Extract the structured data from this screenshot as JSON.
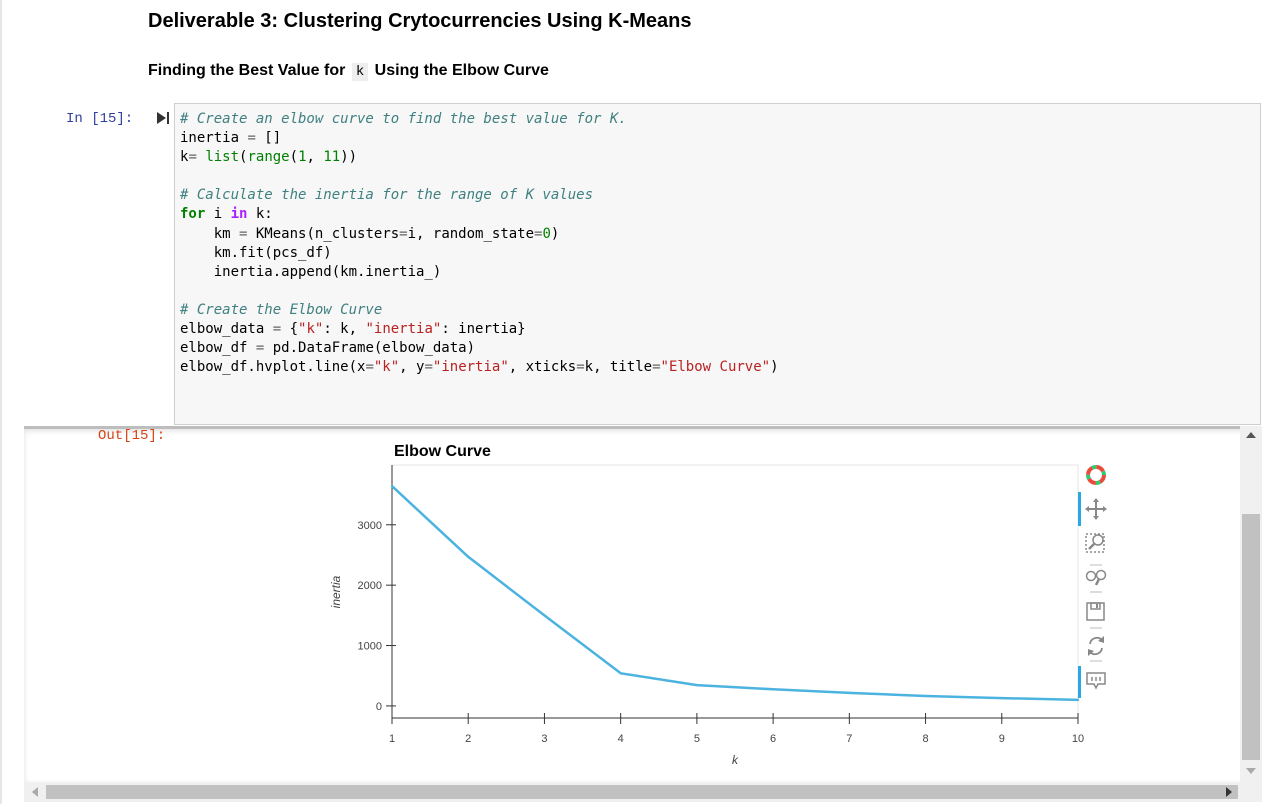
{
  "notebook": {
    "heading": "Deliverable 3: Clustering Crytocurrencies Using K-Means",
    "subheading": {
      "before": "Finding the Best Value for",
      "code": "k",
      "after": "Using the Elbow Curve"
    },
    "cell": {
      "in_prompt": "In [15]:",
      "out_prompt": "Out[15]:"
    }
  },
  "chart_data": {
    "type": "line",
    "title": "Elbow Curve",
    "xlabel": "k",
    "ylabel": "inertia",
    "x": [
      1,
      2,
      3,
      4,
      5,
      6,
      7,
      8,
      9,
      10
    ],
    "y": [
      3640,
      2470,
      1500,
      540,
      345,
      275,
      215,
      165,
      130,
      100
    ],
    "xlim": [
      1,
      10
    ],
    "ylim": [
      -200,
      3990
    ],
    "xticks": [
      "1",
      "2",
      "3",
      "4",
      "5",
      "6",
      "7",
      "8",
      "9",
      "10"
    ],
    "yticks": [
      "0",
      "1000",
      "2000",
      "3000"
    ],
    "ytick_values": [
      0,
      1000,
      2000,
      3000
    ],
    "line_color": "#4cb3e0",
    "grid": false,
    "legend": "none"
  },
  "toolbar": {
    "logo_icon": "bokeh-logo-icon",
    "tools": [
      "pan-icon",
      "box-zoom-icon",
      "wheel-zoom-icon",
      "save-icon",
      "reset-icon",
      "hover-icon"
    ],
    "active_color": "#26aae1"
  },
  "colors": {
    "in_prompt": "#303f9f",
    "out_prompt": "#d84315"
  }
}
